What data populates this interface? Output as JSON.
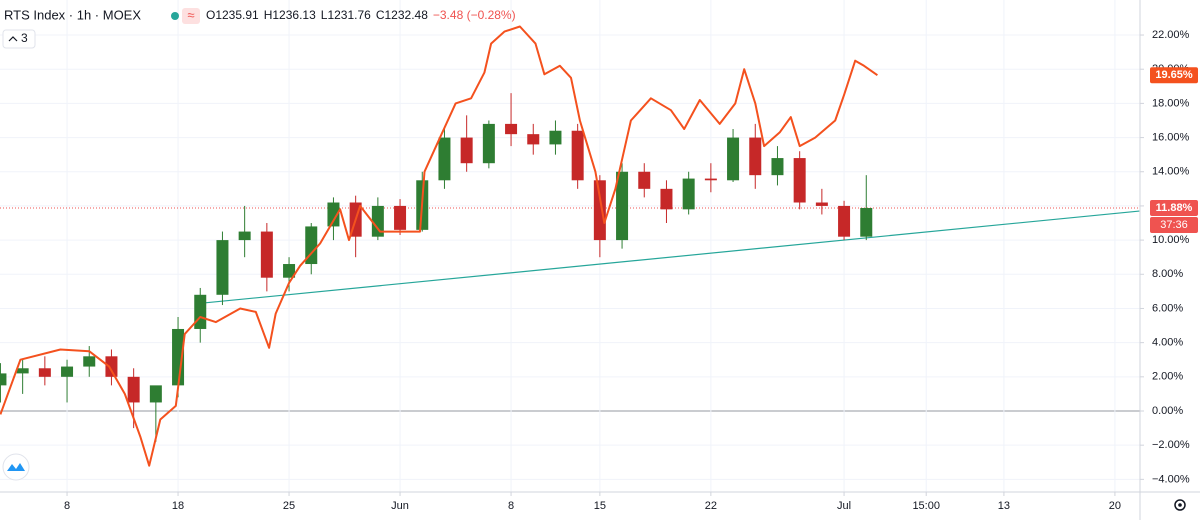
{
  "header": {
    "symbol": "RTS Index · 1h · MOEX",
    "ohlc": [
      "O1235.91",
      "H1236.13",
      "L1231.76",
      "C1232.48",
      "−3.48 (−0.28%)"
    ],
    "legend_count": "3"
  },
  "chart_data": {
    "type": "candlestick",
    "xlim": [
      -3.02,
      48.33
    ],
    "xticks": [
      {
        "value": 0,
        "label": "8"
      },
      {
        "value": 5,
        "label": "18"
      },
      {
        "value": 10,
        "label": "25"
      },
      {
        "value": 15,
        "label": "Jun"
      },
      {
        "value": 20,
        "label": "8"
      },
      {
        "value": 24,
        "label": "15"
      },
      {
        "value": 29,
        "label": "22"
      },
      {
        "value": 35,
        "label": "Jul"
      },
      {
        "value": 38.7,
        "label": "15:00"
      },
      {
        "value": 42.2,
        "label": "13"
      },
      {
        "value": 47.2,
        "label": "20"
      }
    ],
    "ylim": [
      -4.74,
      24.05
    ],
    "yticks": [
      {
        "value": -4,
        "label": "−4.00%"
      },
      {
        "value": -2,
        "label": "−2.00%"
      },
      {
        "value": 0,
        "label": "0.00%"
      },
      {
        "value": 2,
        "label": "2.00%"
      },
      {
        "value": 4,
        "label": "4.00%"
      },
      {
        "value": 6,
        "label": "6.00%"
      },
      {
        "value": 8,
        "label": "8.00%"
      },
      {
        "value": 10,
        "label": "10.00%"
      },
      {
        "value": 12,
        "label": "12.00%"
      },
      {
        "value": 14,
        "label": "14.00%"
      },
      {
        "value": 16,
        "label": "16.00%"
      },
      {
        "value": 18,
        "label": "18.00%"
      },
      {
        "value": 20,
        "label": "20.00%"
      },
      {
        "value": 22,
        "label": "22.00%"
      }
    ],
    "grid": true,
    "up_color": "#2e7d32",
    "down_color": "#c62828",
    "candles": {
      "x": [
        -3,
        -2,
        -1,
        0,
        1,
        2,
        3,
        4,
        5,
        6,
        7,
        8,
        9,
        10,
        11,
        12,
        13,
        14,
        15,
        16,
        17,
        18,
        19,
        20,
        21,
        22,
        23,
        24,
        25,
        26,
        27,
        28,
        29,
        30,
        31,
        32,
        33,
        34,
        35,
        36
      ],
      "open": [
        1.5,
        2.2,
        2.5,
        2.0,
        2.6,
        3.2,
        2.0,
        0.5,
        1.5,
        4.8,
        6.8,
        10.0,
        10.5,
        7.8,
        8.6,
        10.8,
        12.2,
        10.2,
        12.0,
        10.6,
        13.5,
        16.0,
        14.5,
        16.8,
        16.2,
        15.6,
        16.4,
        13.5,
        10.0,
        14.0,
        13.0,
        11.8,
        13.6,
        13.5,
        16.0,
        13.8,
        14.8,
        12.2,
        12.0,
        10.2
      ],
      "high": [
        2.8,
        3.0,
        3.2,
        3.0,
        3.8,
        3.6,
        2.5,
        1.0,
        5.5,
        7.2,
        10.5,
        12.0,
        11.0,
        9.0,
        11.0,
        12.5,
        12.6,
        12.5,
        12.4,
        14.0,
        16.5,
        17.3,
        17.0,
        18.6,
        16.8,
        17.0,
        16.8,
        13.8,
        14.5,
        14.5,
        13.5,
        14.0,
        14.5,
        16.5,
        16.8,
        15.5,
        15.2,
        13.0,
        12.3,
        13.8
      ],
      "low": [
        0.5,
        1.0,
        1.5,
        0.5,
        2.0,
        1.5,
        -1.0,
        -1.8,
        0.8,
        4.0,
        6.2,
        9.0,
        7.0,
        7.0,
        8.0,
        10.0,
        9.0,
        10.0,
        10.3,
        10.5,
        13.0,
        14.0,
        14.2,
        15.5,
        15.0,
        15.0,
        13.0,
        9.0,
        9.5,
        12.5,
        11.0,
        11.5,
        12.8,
        13.4,
        13.0,
        13.2,
        11.8,
        11.5,
        10.0,
        10.0
      ],
      "close": [
        2.2,
        2.5,
        2.0,
        2.6,
        3.2,
        2.0,
        0.5,
        1.5,
        4.8,
        6.8,
        10.0,
        10.5,
        7.8,
        8.6,
        10.8,
        12.2,
        10.2,
        12.0,
        10.6,
        13.5,
        16.0,
        14.5,
        16.8,
        16.2,
        15.6,
        16.4,
        13.5,
        10.0,
        14.0,
        13.0,
        11.8,
        13.6,
        13.5,
        16.0,
        13.8,
        14.8,
        12.2,
        12.0,
        10.2,
        11.88
      ]
    },
    "line_series": {
      "color": "#f4511e",
      "x": [
        -3.0,
        -2.1,
        -0.3,
        1.0,
        1.9,
        2.6,
        3.3,
        3.7,
        4.2,
        4.9,
        5.3,
        6.0,
        6.7,
        7.8,
        8.5,
        9.1,
        9.4,
        10.0,
        10.5,
        11.4,
        12.3,
        12.7,
        13.2,
        14.1,
        15.0,
        15.9,
        16.1,
        16.8,
        17.5,
        18.2,
        18.8,
        19.1,
        19.7,
        20.4,
        21.1,
        21.5,
        22.2,
        22.7,
        23.1,
        23.8,
        24.2,
        24.7,
        25.4,
        26.3,
        27.2,
        27.8,
        28.5,
        29.4,
        30.1,
        30.5,
        31.0,
        31.4,
        32.1,
        32.6,
        33.0,
        33.7,
        34.6,
        35.0,
        35.5,
        35.9,
        36.5
      ],
      "values": [
        -0.2,
        3.0,
        3.6,
        3.5,
        2.6,
        1.0,
        -1.5,
        -3.2,
        -0.5,
        0.3,
        4.5,
        5.5,
        5.2,
        6.0,
        5.8,
        3.7,
        5.7,
        7.5,
        8.5,
        9.8,
        11.8,
        10.0,
        12.0,
        10.5,
        10.5,
        10.5,
        14.0,
        16.0,
        18.0,
        18.3,
        19.8,
        21.5,
        22.2,
        22.5,
        21.5,
        19.7,
        20.2,
        19.5,
        17.0,
        14.0,
        11.0,
        13.0,
        17.0,
        18.3,
        17.6,
        16.5,
        18.2,
        16.8,
        18.0,
        20.0,
        18.0,
        15.5,
        16.3,
        17.2,
        15.5,
        16.0,
        17.0,
        18.5,
        20.5,
        20.2,
        19.65
      ]
    },
    "trendline": {
      "color": "#26a69a",
      "x": [
        6.0,
        48.3
      ],
      "values": [
        6.3,
        11.7
      ]
    },
    "price_line": {
      "value": 11.88,
      "color": "#ef5350"
    },
    "last_labels": [
      {
        "value": 19.65,
        "label": "19.65%",
        "color": "#f4511e"
      },
      {
        "value": 11.88,
        "label": "11.88%",
        "color": "#ef5350"
      }
    ],
    "countdown": "37:36"
  }
}
